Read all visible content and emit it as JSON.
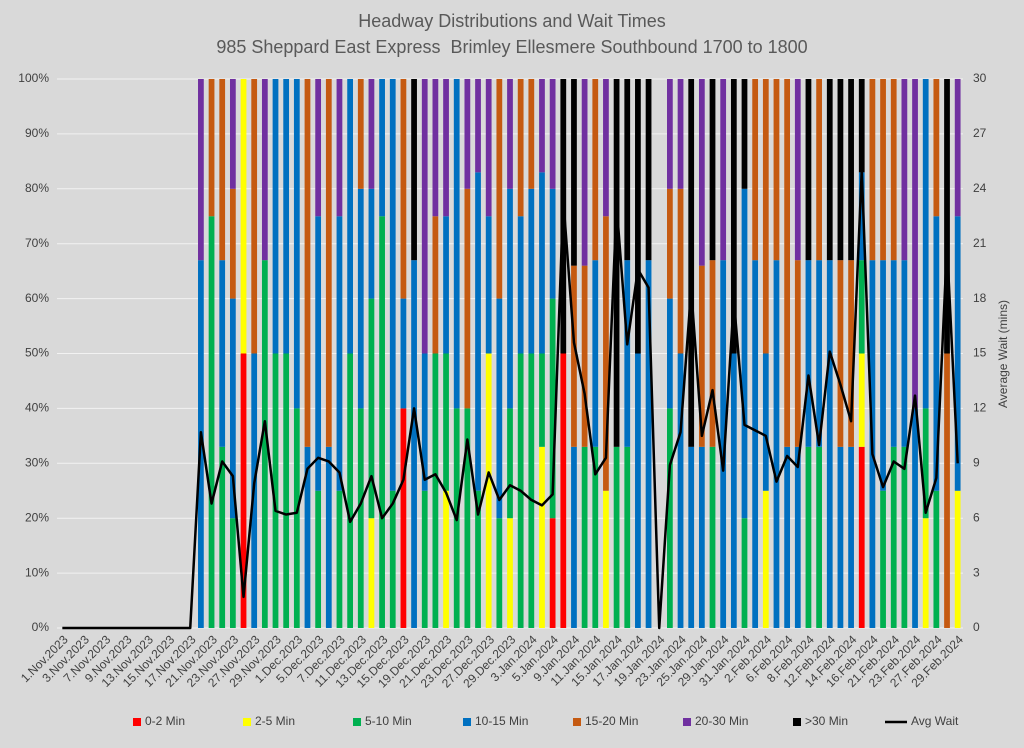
{
  "chart_data": {
    "type": "bar",
    "stacked": true,
    "title": "Headway Distributions and Wait Times",
    "subtitle": "985 Sheppard East Express  Brimley Ellesmere Southbound 1700 to 1800",
    "y2_label": "Average Wait (mins)",
    "categories": [
      "1.Nov.2023",
      null,
      "3.Nov.2023",
      null,
      "7.Nov.2023",
      null,
      "9.Nov.2023",
      null,
      "13.Nov.2023",
      null,
      "15.Nov.2023",
      null,
      "17.Nov.2023",
      null,
      "21.Nov.2023",
      null,
      "23.Nov.2023",
      null,
      "27.Nov.2023",
      null,
      "29.Nov.2023",
      null,
      "1.Dec.2023",
      null,
      "5.Dec.2023",
      null,
      "7.Dec.2023",
      null,
      "11.Dec.2023",
      null,
      "13.Dec.2023",
      null,
      "15.Dec.2023",
      null,
      "19.Dec.2023",
      null,
      "21.Dec.2023",
      null,
      "23.Dec.2023",
      null,
      "27.Dec.2023",
      null,
      "29.Dec.2023",
      null,
      "3.Jan.2024",
      null,
      "5.Jan.2024",
      null,
      "9.Jan.2024",
      null,
      "11.Jan.2024",
      null,
      "15.Jan.2024",
      null,
      "17.Jan.2024",
      null,
      "19.Jan.2024",
      null,
      "23.Jan.2024",
      null,
      "25.Jan.2024",
      null,
      "29.Jan.2024",
      null,
      "31.Jan.2024",
      null,
      "2.Feb.2024",
      null,
      "6.Feb.2024",
      null,
      "8.Feb.2024",
      null,
      "12.Feb.2024",
      null,
      "14.Feb.2024",
      null,
      "16.Feb.2024",
      null,
      "21.Feb.2024",
      null,
      "23.Feb.2024",
      null,
      "27.Feb.2024",
      null,
      "29.Feb.2024"
    ],
    "series": [
      {
        "name": "0-2 Min",
        "color": "#ff0000",
        "values": [
          0,
          0,
          0,
          0,
          0,
          0,
          0,
          0,
          0,
          0,
          0,
          0,
          0,
          0,
          0,
          0,
          0,
          50,
          0,
          0,
          0,
          0,
          0,
          0,
          0,
          0,
          0,
          0,
          0,
          0,
          0,
          0,
          40,
          0,
          0,
          0,
          0,
          0,
          0,
          0,
          0,
          0,
          0,
          0,
          0,
          0,
          20,
          50,
          0,
          0,
          0,
          0,
          0,
          0,
          0,
          0,
          0,
          0,
          0,
          0,
          0,
          0,
          0,
          0,
          0,
          0,
          0,
          0,
          0,
          0,
          0,
          0,
          0,
          0,
          0,
          33,
          0,
          0,
          0,
          0,
          0,
          0,
          0,
          0,
          0
        ]
      },
      {
        "name": "2-5 Min",
        "color": "#ffff00",
        "values": [
          0,
          0,
          0,
          0,
          0,
          0,
          0,
          0,
          0,
          0,
          0,
          0,
          0,
          0,
          0,
          0,
          0,
          50,
          0,
          0,
          0,
          0,
          0,
          0,
          0,
          0,
          0,
          0,
          0,
          20,
          0,
          0,
          0,
          0,
          0,
          0,
          25,
          0,
          0,
          0,
          50,
          0,
          20,
          0,
          0,
          33,
          0,
          0,
          0,
          0,
          0,
          25,
          0,
          0,
          0,
          0,
          0,
          0,
          0,
          0,
          0,
          0,
          0,
          0,
          0,
          0,
          25,
          0,
          0,
          0,
          0,
          0,
          0,
          0,
          0,
          17,
          0,
          0,
          0,
          0,
          0,
          20,
          0,
          0,
          25
        ]
      },
      {
        "name": "5-10 Min",
        "color": "#00b050",
        "values": [
          0,
          0,
          0,
          0,
          0,
          0,
          0,
          0,
          0,
          0,
          0,
          0,
          0,
          0,
          75,
          33,
          20,
          0,
          0,
          67,
          50,
          50,
          40,
          0,
          25,
          0,
          25,
          50,
          40,
          40,
          75,
          25,
          0,
          0,
          25,
          50,
          25,
          40,
          40,
          25,
          0,
          20,
          20,
          50,
          50,
          17,
          40,
          0,
          0,
          33,
          33,
          0,
          33,
          33,
          0,
          0,
          0,
          40,
          0,
          0,
          0,
          33,
          0,
          0,
          20,
          0,
          0,
          0,
          0,
          0,
          33,
          33,
          0,
          0,
          0,
          17,
          0,
          25,
          33,
          33,
          0,
          20,
          25,
          0,
          0
        ]
      },
      {
        "name": "10-15 Min",
        "color": "#0070c0",
        "values": [
          0,
          0,
          0,
          0,
          0,
          0,
          0,
          0,
          0,
          0,
          0,
          0,
          0,
          67,
          0,
          34,
          40,
          0,
          50,
          0,
          50,
          50,
          60,
          33,
          50,
          33,
          50,
          50,
          40,
          20,
          25,
          75,
          20,
          67,
          25,
          0,
          25,
          60,
          0,
          58,
          25,
          40,
          40,
          25,
          30,
          33,
          20,
          0,
          33,
          0,
          34,
          0,
          0,
          34,
          50,
          67,
          0,
          20,
          50,
          33,
          33,
          0,
          67,
          50,
          60,
          67,
          25,
          67,
          33,
          33,
          34,
          34,
          67,
          33,
          33,
          16,
          67,
          42,
          34,
          34,
          40,
          60,
          50,
          0,
          50
        ]
      },
      {
        "name": "15-20 Min",
        "color": "#c55a11",
        "values": [
          0,
          0,
          0,
          0,
          0,
          0,
          0,
          0,
          0,
          0,
          0,
          0,
          0,
          0,
          25,
          33,
          20,
          0,
          50,
          0,
          0,
          0,
          0,
          67,
          0,
          67,
          0,
          0,
          20,
          0,
          0,
          0,
          40,
          0,
          0,
          25,
          0,
          0,
          40,
          0,
          0,
          40,
          0,
          25,
          20,
          0,
          0,
          0,
          33,
          33,
          33,
          50,
          0,
          0,
          0,
          0,
          0,
          20,
          30,
          0,
          33,
          34,
          0,
          0,
          0,
          33,
          50,
          33,
          67,
          34,
          0,
          33,
          0,
          34,
          34,
          0,
          33,
          33,
          33,
          0,
          0,
          0,
          25,
          50,
          0
        ]
      },
      {
        "name": "20-30 Min",
        "color": "#7030a0",
        "values": [
          0,
          0,
          0,
          0,
          0,
          0,
          0,
          0,
          0,
          0,
          0,
          0,
          0,
          33,
          0,
          0,
          20,
          0,
          0,
          33,
          0,
          0,
          0,
          0,
          25,
          0,
          25,
          0,
          0,
          20,
          0,
          0,
          0,
          0,
          50,
          25,
          25,
          0,
          20,
          17,
          25,
          0,
          20,
          0,
          0,
          17,
          20,
          0,
          0,
          34,
          0,
          25,
          0,
          0,
          0,
          0,
          0,
          20,
          20,
          0,
          34,
          0,
          33,
          0,
          0,
          0,
          0,
          0,
          0,
          33,
          0,
          0,
          0,
          0,
          0,
          0,
          0,
          0,
          0,
          33,
          60,
          0,
          0,
          0,
          25
        ]
      },
      {
        "name": ">30 Min",
        "color": "#000000",
        "values": [
          0,
          0,
          0,
          0,
          0,
          0,
          0,
          0,
          0,
          0,
          0,
          0,
          0,
          0,
          0,
          0,
          0,
          0,
          0,
          0,
          0,
          0,
          0,
          0,
          0,
          0,
          0,
          0,
          0,
          0,
          0,
          0,
          0,
          33,
          0,
          0,
          0,
          0,
          0,
          0,
          0,
          0,
          0,
          0,
          0,
          0,
          0,
          50,
          34,
          0,
          0,
          0,
          67,
          33,
          50,
          33,
          0,
          0,
          0,
          67,
          0,
          33,
          0,
          50,
          20,
          0,
          0,
          0,
          0,
          0,
          33,
          0,
          33,
          33,
          33,
          17,
          0,
          0,
          0,
          0,
          0,
          0,
          0,
          50,
          0
        ]
      },
      {
        "name": "Avg Wait",
        "type": "line",
        "axis": "y2",
        "color": "#000000",
        "values": [
          0,
          0,
          0,
          0,
          0,
          0,
          0,
          0,
          0,
          0,
          0,
          0,
          0,
          10.7,
          6.8,
          9.1,
          8.3,
          1.7,
          7.9,
          11.3,
          6.4,
          6.2,
          6.3,
          8.7,
          9.3,
          9.1,
          8.5,
          5.8,
          6.8,
          8.3,
          6.0,
          6.8,
          8.1,
          12.0,
          8.1,
          8.4,
          7.4,
          5.9,
          10.3,
          6.2,
          8.5,
          7.0,
          7.8,
          7.5,
          7.0,
          6.7,
          7.3,
          23.4,
          15.6,
          12.8,
          8.4,
          9.3,
          23.1,
          15.5,
          19.6,
          18.6,
          0,
          8.9,
          10.7,
          18.5,
          10.5,
          13.0,
          8.6,
          17.9,
          11.1,
          10.8,
          10.5,
          8.0,
          9.4,
          8.8,
          13.8,
          10.0,
          15.1,
          13.3,
          11.3,
          25.0,
          9.5,
          7.7,
          9.1,
          8.7,
          12.7,
          6.3,
          8.2,
          20.9,
          9.0
        ]
      }
    ],
    "ylim": [
      0,
      100
    ],
    "yticks": [
      {
        "value": 0,
        "label": "0%"
      },
      {
        "value": 10,
        "label": "10%"
      },
      {
        "value": 20,
        "label": "20%"
      },
      {
        "value": 30,
        "label": "30%"
      },
      {
        "value": 40,
        "label": "40%"
      },
      {
        "value": 50,
        "label": "50%"
      },
      {
        "value": 60,
        "label": "60%"
      },
      {
        "value": 70,
        "label": "70%"
      },
      {
        "value": 80,
        "label": "80%"
      },
      {
        "value": 90,
        "label": "90%"
      },
      {
        "value": 100,
        "label": "100%"
      }
    ],
    "y2lim": [
      0,
      30
    ],
    "y2ticks": [
      0,
      3,
      6,
      9,
      12,
      15,
      18,
      21,
      24,
      27,
      30
    ],
    "grid": true,
    "legend": "bottom"
  }
}
